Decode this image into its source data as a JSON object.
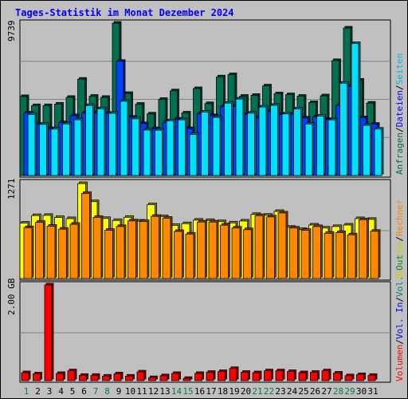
{
  "chart_data": [
    {
      "type": "bar",
      "title": "Tages-Statistik im Monat Dezember 2024",
      "y_tick_label": "9739",
      "ylim": [
        0,
        9739
      ],
      "categories": [
        "1",
        "2",
        "3",
        "4",
        "5",
        "6",
        "7",
        "8",
        "9",
        "10",
        "11",
        "12",
        "13",
        "14",
        "15",
        "16",
        "17",
        "18",
        "19",
        "20",
        "21",
        "22",
        "23",
        "24",
        "25",
        "26",
        "27",
        "28",
        "29",
        "30",
        "31"
      ],
      "weekend_color": "#008040",
      "weekday_color": "#008080",
      "weekend_days": [
        "1",
        "7",
        "8",
        "14",
        "15",
        "21",
        "22",
        "28",
        "29"
      ],
      "legend": [
        {
          "text": "Anfragen",
          "color": "#007040"
        },
        {
          "text": "/",
          "color": "#000000"
        },
        {
          "text": "Dateien",
          "color": "#0000ff"
        },
        {
          "text": "/",
          "color": "#000000"
        },
        {
          "text": "Seiten",
          "color": "#00c0ff"
        }
      ],
      "series": [
        {
          "name": "Anfragen",
          "color": "#007050",
          "values": [
            5050,
            4470,
            4470,
            4570,
            5000,
            6160,
            5070,
            5000,
            9739,
            5250,
            4560,
            3940,
            4870,
            5420,
            4000,
            5560,
            4600,
            6310,
            6450,
            5070,
            5130,
            5730,
            5230,
            5170,
            5070,
            4670,
            5100,
            7350,
            9430,
            6100,
            4630
          ]
        },
        {
          "name": "Dateien",
          "color": "#0040ff",
          "values": [
            4000,
            3280,
            3000,
            3380,
            3830,
            4000,
            4000,
            3980,
            7300,
            3730,
            3320,
            3000,
            3400,
            3610,
            3000,
            3960,
            3830,
            4400,
            4400,
            3900,
            3680,
            4090,
            3900,
            3920,
            3680,
            3760,
            3580,
            4480,
            5700,
            3700,
            3280
          ]
        },
        {
          "name": "Seiten",
          "color": "#00e0ff",
          "values": [
            3910,
            3270,
            2970,
            3300,
            3560,
            4470,
            4270,
            3980,
            4750,
            3630,
            2910,
            2900,
            3500,
            3560,
            2630,
            4060,
            3720,
            4630,
            4890,
            3990,
            4380,
            4490,
            3940,
            4260,
            3290,
            3800,
            3560,
            5900,
            8440,
            3210,
            2970
          ]
        }
      ]
    },
    {
      "type": "bar",
      "y_tick_label": "1271",
      "ylim": [
        0,
        1271
      ],
      "categories": [
        "1",
        "2",
        "3",
        "4",
        "5",
        "6",
        "7",
        "8",
        "9",
        "10",
        "11",
        "12",
        "13",
        "14",
        "15",
        "16",
        "17",
        "18",
        "19",
        "20",
        "21",
        "22",
        "23",
        "24",
        "25",
        "26",
        "27",
        "28",
        "29",
        "30",
        "31"
      ],
      "legend": [
        {
          "text": "Besuche",
          "color": "#e0e000"
        },
        {
          "text": "/",
          "color": "#000000"
        },
        {
          "text": "Rechner",
          "color": "#ff8000"
        }
      ],
      "series": [
        {
          "name": "Besuche",
          "color": "#ffff00",
          "values": [
            735,
            835,
            838,
            810,
            795,
            1260,
            1020,
            797,
            770,
            812,
            762,
            980,
            822,
            705,
            728,
            775,
            770,
            755,
            738,
            763,
            850,
            840,
            890,
            680,
            650,
            710,
            670,
            690,
            710,
            795,
            785
          ]
        },
        {
          "name": "Rechner",
          "color": "#ff8800",
          "values": [
            675,
            745,
            695,
            655,
            720,
            1130,
            812,
            640,
            690,
            765,
            757,
            825,
            800,
            625,
            590,
            750,
            750,
            708,
            670,
            648,
            835,
            818,
            870,
            670,
            640,
            690,
            600,
            610,
            580,
            780,
            627
          ]
        }
      ]
    },
    {
      "type": "bar",
      "y_tick_label": "2.00 GB",
      "unit": "GB",
      "ylim": [
        0,
        2.52
      ],
      "categories": [
        "1",
        "2",
        "3",
        "4",
        "5",
        "6",
        "7",
        "8",
        "9",
        "10",
        "11",
        "12",
        "13",
        "14",
        "15",
        "16",
        "17",
        "18",
        "19",
        "20",
        "21",
        "22",
        "23",
        "24",
        "25",
        "26",
        "27",
        "28",
        "29",
        "30",
        "31"
      ],
      "legend": [
        {
          "text": "Volumen",
          "color": "#ff0000"
        },
        {
          "text": "/",
          "color": "#000000"
        },
        {
          "text": "Vol. In",
          "color": "#0000ff"
        },
        {
          "text": "/",
          "color": "#000000"
        },
        {
          "text": "Vol. Out",
          "color": "#008080"
        }
      ],
      "series": [
        {
          "name": "Volumen",
          "color": "#ff0000",
          "values": [
            0.21,
            0.18,
            2.52,
            0.19,
            0.26,
            0.14,
            0.14,
            0.12,
            0.18,
            0.12,
            0.23,
            0.08,
            0.13,
            0.19,
            0.06,
            0.19,
            0.22,
            0.24,
            0.32,
            0.22,
            0.21,
            0.26,
            0.26,
            0.24,
            0.21,
            0.22,
            0.26,
            0.2,
            0.13,
            0.16,
            0.14
          ]
        }
      ]
    }
  ]
}
